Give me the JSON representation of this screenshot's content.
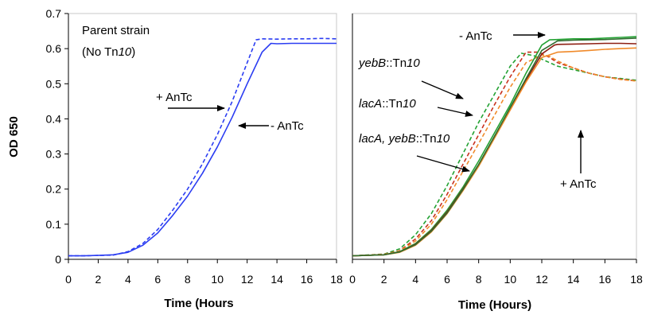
{
  "chart_data": [
    {
      "type": "line",
      "panel": "left",
      "xlabel": "Time (Hours",
      "ylabel": "OD 650",
      "xlim": [
        0,
        18
      ],
      "ylim": [
        0,
        0.7
      ],
      "x_ticks": [
        "0",
        "2",
        "4",
        "6",
        "8",
        "10",
        "12",
        "14",
        "16",
        "18"
      ],
      "y_ticks": [
        "0",
        "0.1",
        "0.2",
        "0.3",
        "0.4",
        "0.5",
        "0.6",
        "0.7"
      ],
      "grid": false,
      "annotations": {
        "title_line1": "Parent strain",
        "title_line2_pre": "(No Tn",
        "title_line2_italic": "10",
        "title_line2_post": ")",
        "plus": "+ AnTc",
        "minus": "- AnTc"
      },
      "series": [
        {
          "condition": "+ AnTc",
          "color": "#2b3df2",
          "dashed": true,
          "x": [
            0,
            1,
            2,
            3,
            4,
            5,
            6,
            7,
            8,
            9,
            10,
            11,
            12,
            12.6,
            13,
            14,
            15,
            16,
            17,
            18
          ],
          "y": [
            0.01,
            0.01,
            0.011,
            0.012,
            0.022,
            0.045,
            0.085,
            0.14,
            0.2,
            0.272,
            0.355,
            0.45,
            0.56,
            0.625,
            0.628,
            0.627,
            0.628,
            0.628,
            0.629,
            0.628
          ]
        },
        {
          "condition": "- AnTc",
          "color": "#2b3df2",
          "dashed": false,
          "x": [
            0,
            1,
            2,
            3,
            4,
            5,
            6,
            7,
            8,
            9,
            10,
            11,
            12,
            13,
            13.6,
            14,
            15,
            16,
            17,
            18
          ],
          "y": [
            0.01,
            0.01,
            0.011,
            0.013,
            0.02,
            0.04,
            0.075,
            0.125,
            0.18,
            0.245,
            0.32,
            0.405,
            0.5,
            0.59,
            0.615,
            0.614,
            0.615,
            0.615,
            0.615,
            0.615
          ]
        }
      ]
    },
    {
      "type": "line",
      "panel": "right",
      "xlabel": "Time (Hours)",
      "xlim": [
        0,
        18
      ],
      "ylim": [
        0,
        0.7
      ],
      "x_ticks": [
        "0",
        "2",
        "4",
        "6",
        "8",
        "10",
        "12",
        "14",
        "16",
        "18"
      ],
      "grid": false,
      "annotations": {
        "minus": "- AnTc",
        "plus": "+ AnTc",
        "yebB_italic": "yebB",
        "yebB_rest": "::Tn",
        "yebB_num": "10",
        "lacA_italic": "lacA",
        "lacA_rest": "::Tn",
        "lacA_num": "10",
        "both_italic": "lacA, yebB",
        "both_rest": "::Tn",
        "both_num": "10"
      },
      "series": [
        {
          "strain": "yebB::Tn10",
          "condition": "+ AnTc",
          "color": "#23a233",
          "dashed": true,
          "x": [
            0,
            2,
            3,
            4,
            5,
            6,
            7,
            8,
            9,
            10,
            10.7,
            11.5,
            12,
            13,
            14,
            15,
            16,
            17,
            18
          ],
          "y": [
            0.01,
            0.015,
            0.03,
            0.07,
            0.13,
            0.21,
            0.3,
            0.39,
            0.47,
            0.55,
            0.587,
            0.58,
            0.57,
            0.55,
            0.54,
            0.53,
            0.52,
            0.515,
            0.51
          ]
        },
        {
          "strain": "lacA::Tn10",
          "condition": "+ AnTc",
          "color": "#c8321e",
          "dashed": true,
          "x": [
            0,
            2,
            3,
            4,
            5,
            6,
            7,
            8,
            9,
            10,
            11,
            11.8,
            12.5,
            13,
            14,
            15,
            16,
            17,
            18
          ],
          "y": [
            0.01,
            0.014,
            0.025,
            0.058,
            0.11,
            0.185,
            0.27,
            0.355,
            0.44,
            0.52,
            0.59,
            0.59,
            0.575,
            0.56,
            0.545,
            0.53,
            0.52,
            0.513,
            0.508
          ]
        },
        {
          "strain": "lacA, yebB::Tn10",
          "condition": "+ AnTc",
          "color": "#f08a2a",
          "dashed": true,
          "x": [
            0,
            2,
            3,
            4,
            5,
            6,
            7,
            8,
            9,
            10,
            11,
            12,
            12.5,
            13,
            14,
            15,
            16,
            17,
            18
          ],
          "y": [
            0.01,
            0.014,
            0.024,
            0.052,
            0.1,
            0.17,
            0.25,
            0.33,
            0.41,
            0.49,
            0.56,
            0.582,
            0.578,
            0.565,
            0.545,
            0.53,
            0.52,
            0.512,
            0.508
          ]
        },
        {
          "strain": "yebB::Tn10",
          "condition": "- AnTc",
          "color": "#23a233",
          "dashed": false,
          "x": [
            0,
            2,
            3,
            4,
            5,
            6,
            7,
            8,
            9,
            10,
            11,
            12,
            12.5,
            13,
            14,
            15,
            16,
            17,
            18
          ],
          "y": [
            0.01,
            0.013,
            0.022,
            0.045,
            0.085,
            0.14,
            0.205,
            0.28,
            0.36,
            0.44,
            0.53,
            0.61,
            0.625,
            0.626,
            0.628,
            0.628,
            0.63,
            0.632,
            0.634
          ]
        },
        {
          "strain": "lacA::Tn10",
          "condition": "- AnTc",
          "color": "#8e1f14",
          "dashed": false,
          "x": [
            0,
            2,
            3,
            4,
            5,
            6,
            7,
            8,
            9,
            10,
            11,
            12,
            12.8,
            13,
            14,
            15,
            16,
            17,
            18
          ],
          "y": [
            0.01,
            0.013,
            0.021,
            0.043,
            0.082,
            0.135,
            0.2,
            0.27,
            0.35,
            0.43,
            0.51,
            0.585,
            0.61,
            0.612,
            0.613,
            0.614,
            0.615,
            0.615,
            0.614
          ]
        },
        {
          "strain": "lacA, yebB::Tn10",
          "condition": "- AnTc",
          "color": "#f08a2a",
          "dashed": false,
          "x": [
            0,
            2,
            3,
            4,
            5,
            6,
            7,
            8,
            9,
            10,
            11,
            12,
            13,
            14,
            15,
            16,
            17,
            18
          ],
          "y": [
            0.01,
            0.013,
            0.02,
            0.04,
            0.078,
            0.13,
            0.195,
            0.265,
            0.345,
            0.425,
            0.505,
            0.575,
            0.59,
            0.592,
            0.595,
            0.598,
            0.6,
            0.602
          ]
        },
        {
          "strain": "parent (overlay)",
          "condition": "- AnTc",
          "color": "#2f6b2f",
          "dashed": false,
          "x": [
            0,
            2,
            3,
            4,
            5,
            6,
            7,
            8,
            9,
            10,
            11,
            12,
            13,
            14,
            15,
            16,
            17,
            18
          ],
          "y": [
            0.01,
            0.013,
            0.021,
            0.042,
            0.08,
            0.132,
            0.198,
            0.27,
            0.35,
            0.432,
            0.515,
            0.595,
            0.622,
            0.624,
            0.625,
            0.626,
            0.628,
            0.63
          ]
        }
      ]
    }
  ]
}
